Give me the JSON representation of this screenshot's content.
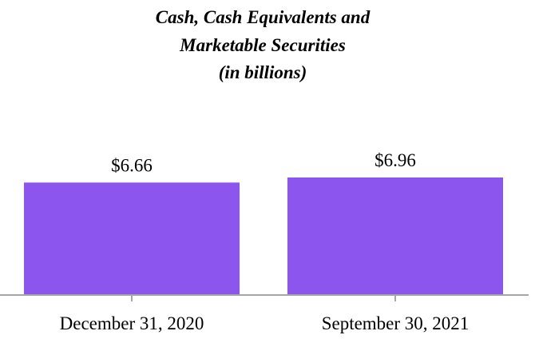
{
  "chart_data": {
    "type": "bar",
    "title_lines": [
      "Cash, Cash Equivalents and",
      "Marketable Securities",
      "(in billions)"
    ],
    "categories": [
      "December 31, 2020",
      "September 30, 2021"
    ],
    "values": [
      6.66,
      6.96
    ],
    "value_labels": [
      "$6.66",
      "$6.96"
    ],
    "bar_color": "#8c56ee",
    "axis_color": "#a6a6a6",
    "grid": false,
    "legend": "none"
  }
}
